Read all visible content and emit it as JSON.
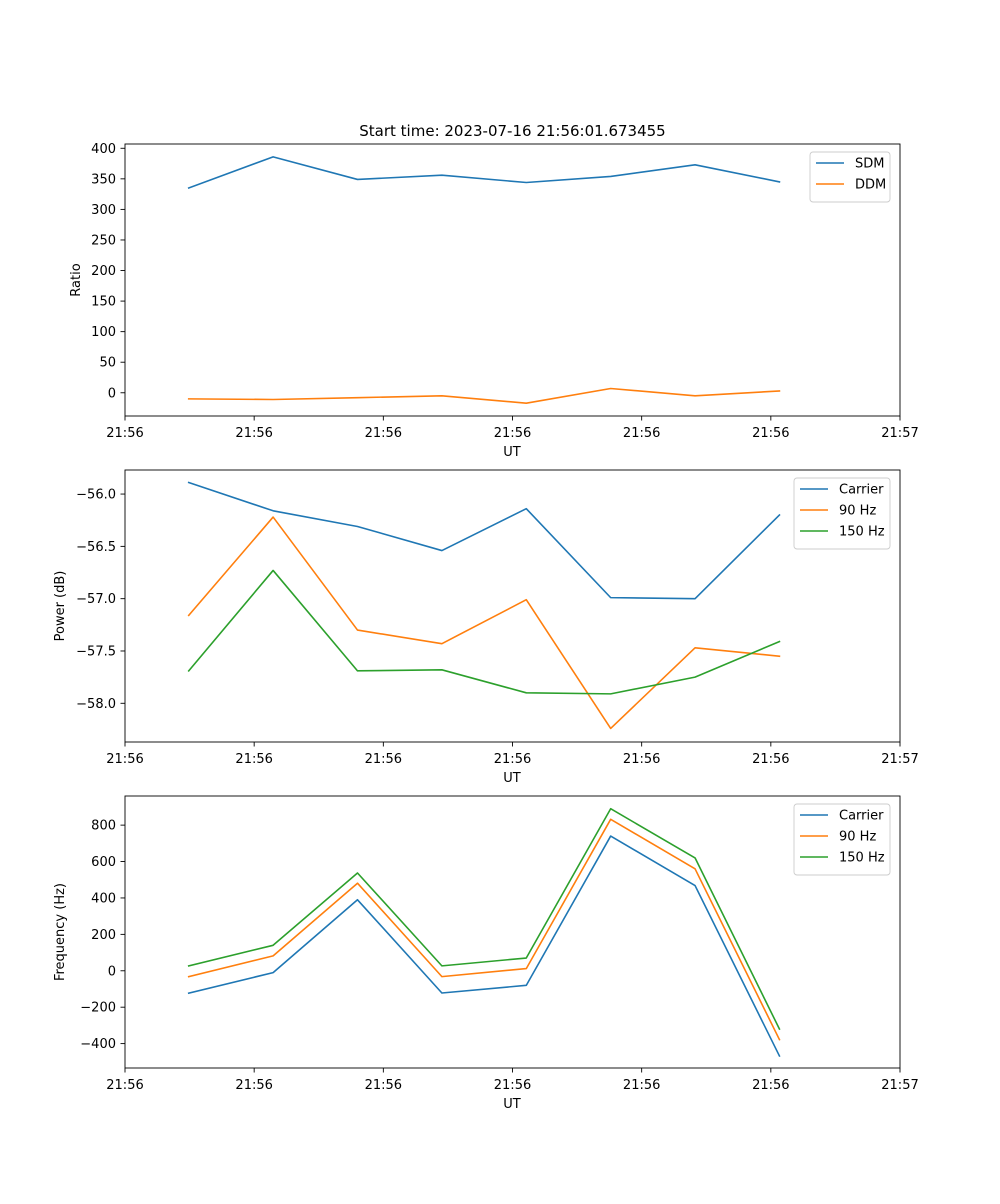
{
  "suptitle": "Start time: 2023-07-16 21:56:01.673455",
  "colors": {
    "c0": "#1f77b4",
    "c1": "#ff7f0e",
    "c2": "#2ca02c",
    "axis": "#000000",
    "legend_border": "#cccccc"
  },
  "chart_data": [
    {
      "type": "line",
      "title": "Start time: 2023-07-16 21:56:01.673455",
      "xlabel": "UT",
      "ylabel": "Ratio",
      "xlim": [
        0,
        9
      ],
      "ylim": [
        -38,
        407
      ],
      "grid": false,
      "legend_position": "upper right",
      "x_ticks": [
        0,
        1.5,
        3,
        4.5,
        6,
        7.5,
        9
      ],
      "x_tick_labels": [
        "21:56",
        "21:56",
        "21:56",
        "21:56",
        "21:56",
        "21:56",
        "21:57"
      ],
      "y_ticks": [
        0,
        50,
        100,
        150,
        200,
        250,
        300,
        350,
        400
      ],
      "y_tick_labels": [
        "0",
        "50",
        "100",
        "150",
        "200",
        "250",
        "300",
        "350",
        "400"
      ],
      "x": [
        0.74,
        1.72,
        2.7,
        3.68,
        4.66,
        5.64,
        6.62,
        7.6
      ],
      "series": [
        {
          "name": "SDM",
          "color": "#1f77b4",
          "values": [
            335,
            386,
            349,
            356,
            344,
            354,
            373,
            345
          ]
        },
        {
          "name": "DDM",
          "color": "#ff7f0e",
          "values": [
            -10,
            -11,
            -8,
            -5,
            -17,
            7,
            -5,
            3
          ]
        }
      ]
    },
    {
      "type": "line",
      "xlabel": "UT",
      "ylabel": "Power (dB)",
      "xlim": [
        0,
        9
      ],
      "ylim": [
        -58.37,
        -55.77
      ],
      "grid": false,
      "legend_position": "upper right",
      "x_ticks": [
        0,
        1.5,
        3,
        4.5,
        6,
        7.5,
        9
      ],
      "x_tick_labels": [
        "21:56",
        "21:56",
        "21:56",
        "21:56",
        "21:56",
        "21:56",
        "21:57"
      ],
      "y_ticks": [
        -56.0,
        -56.5,
        -57.0,
        -57.5,
        -58.0
      ],
      "y_tick_labels": [
        "−56.0",
        "−56.5",
        "−57.0",
        "−57.5",
        "−58.0"
      ],
      "x": [
        0.74,
        1.72,
        2.7,
        3.68,
        4.66,
        5.64,
        6.62,
        7.6
      ],
      "series": [
        {
          "name": "Carrier",
          "color": "#1f77b4",
          "values": [
            -55.89,
            -56.16,
            -56.31,
            -56.54,
            -56.14,
            -56.99,
            -57.0,
            -56.2
          ]
        },
        {
          "name": "90 Hz",
          "color": "#ff7f0e",
          "values": [
            -57.16,
            -56.22,
            -57.3,
            -57.43,
            -57.01,
            -58.24,
            -57.47,
            -57.55
          ]
        },
        {
          "name": "150 Hz",
          "color": "#2ca02c",
          "values": [
            -57.69,
            -56.73,
            -57.69,
            -57.68,
            -57.9,
            -57.91,
            -57.75,
            -57.41
          ]
        }
      ]
    },
    {
      "type": "line",
      "xlabel": "UT",
      "ylabel": "Frequency (Hz)",
      "xlim": [
        0,
        9
      ],
      "ylim": [
        -534,
        960
      ],
      "grid": false,
      "legend_position": "upper right",
      "x_ticks": [
        0,
        1.5,
        3,
        4.5,
        6,
        7.5,
        9
      ],
      "x_tick_labels": [
        "21:56",
        "21:56",
        "21:56",
        "21:56",
        "21:56",
        "21:56",
        "21:57"
      ],
      "y_ticks": [
        800,
        600,
        400,
        200,
        0,
        -200,
        -400
      ],
      "y_tick_labels": [
        "800",
        "600",
        "400",
        "200",
        "0",
        "−200",
        "−400"
      ],
      "x": [
        0.74,
        1.72,
        2.7,
        3.68,
        4.66,
        5.64,
        6.62,
        7.6
      ],
      "series": [
        {
          "name": "Carrier",
          "color": "#1f77b4",
          "values": [
            -123,
            -10,
            390,
            -122,
            -80,
            740,
            468,
            -468
          ]
        },
        {
          "name": "90 Hz",
          "color": "#ff7f0e",
          "values": [
            -32,
            82,
            481,
            -32,
            12,
            832,
            560,
            -378
          ]
        },
        {
          "name": "150 Hz",
          "color": "#2ca02c",
          "values": [
            27,
            140,
            537,
            27,
            70,
            890,
            620,
            -320
          ]
        }
      ]
    }
  ]
}
